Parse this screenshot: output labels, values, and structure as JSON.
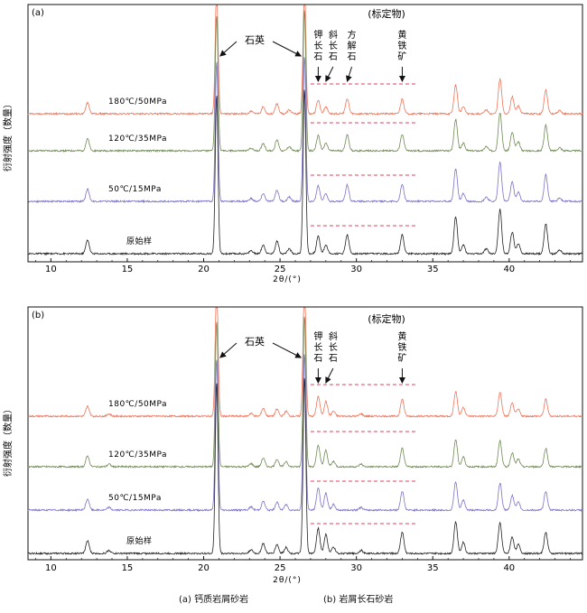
{
  "chart_data": [
    {
      "type": "line",
      "panel_label": "(a)",
      "xlabel": "2θ/(°)",
      "ylabel": "衍射强度（数量）",
      "xlim": [
        8.5,
        44.8
      ],
      "x_ticks": [
        10,
        15,
        20,
        25,
        30,
        35,
        40
      ],
      "reference_label": "(标定物)",
      "quartz_label": "石英",
      "mineral_labels": [
        {
          "text": "钾长石",
          "x": 27.5
        },
        {
          "text": "斜长石",
          "x": 28.0
        },
        {
          "text": "方解石",
          "x": 29.4
        },
        {
          "text": "黄铁矿",
          "x": 33.0
        }
      ],
      "series": [
        {
          "name": "180℃/50MPa",
          "color": "#f0745a"
        },
        {
          "name": "120℃/35MPa",
          "color": "#6f8a55"
        },
        {
          "name": "50℃/15MPa",
          "color": "#7a72c8"
        },
        {
          "name": "原始样",
          "color": "#222222"
        }
      ],
      "peaks": [
        {
          "x": 12.4,
          "h": 22
        },
        {
          "x": 20.85,
          "h": 250
        },
        {
          "x": 23.1,
          "h": 5
        },
        {
          "x": 23.9,
          "h": 14
        },
        {
          "x": 24.8,
          "h": 20
        },
        {
          "x": 25.6,
          "h": 8
        },
        {
          "x": 26.6,
          "h": 260
        },
        {
          "x": 27.5,
          "h": 28
        },
        {
          "x": 28.0,
          "h": 14
        },
        {
          "x": 29.4,
          "h": 30
        },
        {
          "x": 33.0,
          "h": 30
        },
        {
          "x": 36.5,
          "h": 58
        },
        {
          "x": 37.0,
          "h": 14
        },
        {
          "x": 38.5,
          "h": 8
        },
        {
          "x": 39.4,
          "h": 70
        },
        {
          "x": 40.2,
          "h": 34
        },
        {
          "x": 40.6,
          "h": 16
        },
        {
          "x": 42.4,
          "h": 48
        },
        {
          "x": 43.3,
          "h": 6
        }
      ]
    },
    {
      "type": "line",
      "panel_label": "(b)",
      "xlabel": "2θ/(°)",
      "ylabel": "衍射强度（数量）",
      "xlim": [
        8.5,
        44.8
      ],
      "x_ticks": [
        10,
        15,
        20,
        25,
        30,
        35,
        40
      ],
      "reference_label": "(标定物)",
      "quartz_label": "石英",
      "mineral_labels": [
        {
          "text": "钾长石",
          "x": 27.5
        },
        {
          "text": "斜长石",
          "x": 28.0
        },
        {
          "text": "黄铁矿",
          "x": 33.0
        }
      ],
      "series": [
        {
          "name": "180℃/50MPa",
          "color": "#f0745a"
        },
        {
          "name": "120℃/35MPa",
          "color": "#6f8a55"
        },
        {
          "name": "50℃/15MPa",
          "color": "#7a72c8"
        },
        {
          "name": "原始样",
          "color": "#222222"
        }
      ],
      "peaks": [
        {
          "x": 12.4,
          "h": 20
        },
        {
          "x": 13.8,
          "h": 5
        },
        {
          "x": 20.85,
          "h": 270
        },
        {
          "x": 23.1,
          "h": 6
        },
        {
          "x": 23.9,
          "h": 16
        },
        {
          "x": 24.8,
          "h": 14
        },
        {
          "x": 25.4,
          "h": 10
        },
        {
          "x": 26.6,
          "h": 280
        },
        {
          "x": 27.5,
          "h": 40
        },
        {
          "x": 28.0,
          "h": 30
        },
        {
          "x": 28.5,
          "h": 10
        },
        {
          "x": 30.3,
          "h": 5
        },
        {
          "x": 33.0,
          "h": 34
        },
        {
          "x": 36.5,
          "h": 50
        },
        {
          "x": 37.0,
          "h": 18
        },
        {
          "x": 39.4,
          "h": 48
        },
        {
          "x": 40.2,
          "h": 26
        },
        {
          "x": 40.6,
          "h": 14
        },
        {
          "x": 42.4,
          "h": 34
        }
      ]
    }
  ],
  "captions": {
    "a": "(a) 钙质岩屑砂岩",
    "b": "(b) 岩屑长石砂岩"
  }
}
